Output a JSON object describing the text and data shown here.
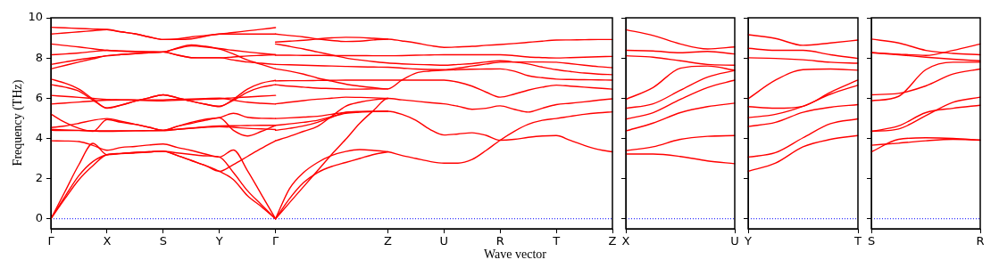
{
  "chart_data": [
    {
      "type": "line",
      "xlabel": "Wave vector",
      "ylabel": "Frequency (THz)",
      "marker": "none",
      "line_style": "solid",
      "categories": [
        "Γ",
        null,
        null,
        null,
        "X",
        null,
        null,
        null,
        "S",
        null,
        null,
        null,
        "Y",
        null,
        null,
        null,
        "Γ",
        null,
        null,
        null,
        null,
        null,
        null,
        null,
        "Z",
        null,
        null,
        null,
        "U",
        null,
        null,
        null,
        "R",
        null,
        null,
        null,
        "T",
        null,
        null,
        null,
        "Z"
      ],
      "ylim": [
        -0.5,
        10
      ],
      "yticks": [
        0,
        2,
        4,
        6,
        8,
        10
      ],
      "ref_lines": [
        {
          "axis": "y",
          "value": 0,
          "color": "#0000ff",
          "line_style": "dotted"
        }
      ],
      "series": [
        {
          "color": "#ff0000",
          "values": [
            9.53,
            9.5,
            9.47,
            9.44,
            9.41,
            9.3,
            9.2,
            9.05,
            8.92,
            8.95,
            9.05,
            9.12,
            9.19,
            9.27,
            9.35,
            9.43,
            9.51,
            null,
            null,
            null,
            null,
            null,
            null,
            null,
            null,
            null,
            null,
            null,
            null,
            null,
            null,
            null,
            null,
            null,
            null,
            null,
            null,
            null,
            null,
            null,
            null
          ]
        },
        {
          "color": "#ff0000",
          "values": [
            9.19,
            9.25,
            9.3,
            9.36,
            9.41,
            9.3,
            9.2,
            9.05,
            8.92,
            8.92,
            8.95,
            9.08,
            9.19,
            9.19,
            9.19,
            9.19,
            9.19,
            null,
            null,
            null,
            null,
            null,
            null,
            null,
            null,
            null,
            null,
            null,
            null,
            null,
            null,
            null,
            null,
            null,
            null,
            null,
            null,
            null,
            null,
            null,
            null
          ]
        },
        {
          "color": "#ff0000",
          "values": [
            8.7,
            8.62,
            8.55,
            8.46,
            8.38,
            8.34,
            8.32,
            8.31,
            8.3,
            8.5,
            8.65,
            8.58,
            8.47,
            8.38,
            8.3,
            8.23,
            8.16,
            null,
            null,
            null,
            null,
            null,
            null,
            null,
            null,
            null,
            null,
            null,
            null,
            null,
            null,
            null,
            null,
            null,
            null,
            null,
            null,
            null,
            null,
            null,
            null
          ]
        },
        {
          "color": "#ff0000",
          "values": [
            8.16,
            8.2,
            8.25,
            8.32,
            8.38,
            8.35,
            8.33,
            8.31,
            8.3,
            8.15,
            8.02,
            8.01,
            8.01,
            8.05,
            8.1,
            8.13,
            8.16,
            null,
            null,
            null,
            null,
            null,
            null,
            null,
            null,
            null,
            null,
            null,
            null,
            null,
            null,
            null,
            null,
            null,
            null,
            null,
            null,
            null,
            null,
            null,
            null
          ]
        },
        {
          "color": "#ff0000",
          "values": [
            7.68,
            7.8,
            7.92,
            8.02,
            8.11,
            8.17,
            8.22,
            8.26,
            8.3,
            8.15,
            8.02,
            8.01,
            8.01,
            7.9,
            7.8,
            7.74,
            7.68,
            null,
            null,
            null,
            null,
            null,
            null,
            null,
            null,
            null,
            null,
            null,
            null,
            null,
            null,
            null,
            null,
            null,
            null,
            null,
            null,
            null,
            null,
            null,
            null
          ]
        },
        {
          "color": "#ff0000",
          "values": [
            7.46,
            7.63,
            7.8,
            7.96,
            8.11,
            8.17,
            8.22,
            8.26,
            8.3,
            8.47,
            8.6,
            8.55,
            8.45,
            8.2,
            7.9,
            7.68,
            7.46,
            null,
            null,
            null,
            null,
            null,
            null,
            null,
            null,
            null,
            null,
            null,
            null,
            null,
            null,
            null,
            null,
            null,
            null,
            null,
            null,
            null,
            null,
            null,
            null
          ]
        },
        {
          "color": "#ff0000",
          "values": [
            6.95,
            6.75,
            6.45,
            5.95,
            5.5,
            5.65,
            5.85,
            6.02,
            6.17,
            6.02,
            5.85,
            5.7,
            5.58,
            5.95,
            6.45,
            6.75,
            6.89,
            null,
            null,
            null,
            null,
            null,
            null,
            null,
            null,
            null,
            null,
            null,
            null,
            null,
            null,
            null,
            null,
            null,
            null,
            null,
            null,
            null,
            null,
            null,
            null
          ]
        },
        {
          "color": "#ff0000",
          "values": [
            6.67,
            6.55,
            6.35,
            5.9,
            5.52,
            5.66,
            5.85,
            6.02,
            6.17,
            6.02,
            5.85,
            5.7,
            5.6,
            5.9,
            6.3,
            6.55,
            6.67,
            null,
            null,
            null,
            null,
            null,
            null,
            null,
            null,
            null,
            null,
            null,
            null,
            null,
            null,
            null,
            null,
            null,
            null,
            null,
            null,
            null,
            null,
            null,
            null
          ]
        },
        {
          "color": "#ff0000",
          "values": [
            6.14,
            6.09,
            6.04,
            5.99,
            5.94,
            5.92,
            5.9,
            5.88,
            5.87,
            5.9,
            5.92,
            5.95,
            5.97,
            6.02,
            6.06,
            6.1,
            6.14,
            null,
            null,
            null,
            null,
            null,
            null,
            null,
            null,
            null,
            null,
            null,
            null,
            null,
            null,
            null,
            null,
            null,
            null,
            null,
            null,
            null,
            null,
            null,
            null
          ]
        },
        {
          "color": "#ff0000",
          "values": [
            5.71,
            5.76,
            5.81,
            5.86,
            5.9,
            5.91,
            5.91,
            5.92,
            5.92,
            5.94,
            5.96,
            5.98,
            6.0,
            5.9,
            5.8,
            5.75,
            5.71,
            null,
            null,
            null,
            null,
            null,
            null,
            null,
            null,
            null,
            null,
            null,
            null,
            null,
            null,
            null,
            null,
            null,
            null,
            null,
            null,
            null,
            null,
            null,
            null
          ]
        },
        {
          "color": "#ff0000",
          "values": [
            5.21,
            4.8,
            4.5,
            4.35,
            4.94,
            4.8,
            4.7,
            4.55,
            4.4,
            4.6,
            4.75,
            4.9,
            5.03,
            4.4,
            4.12,
            4.35,
            4.65,
            null,
            null,
            null,
            null,
            null,
            null,
            null,
            null,
            null,
            null,
            null,
            null,
            null,
            null,
            null,
            null,
            null,
            null,
            null,
            null,
            null,
            null,
            null,
            null
          ]
        },
        {
          "color": "#ff0000",
          "values": [
            4.54,
            4.62,
            4.75,
            4.9,
            4.99,
            4.85,
            4.7,
            4.55,
            4.4,
            4.6,
            4.8,
            4.95,
            5.03,
            5.25,
            5.05,
            5.0,
            4.99,
            null,
            null,
            null,
            null,
            null,
            null,
            null,
            null,
            null,
            null,
            null,
            null,
            null,
            null,
            null,
            null,
            null,
            null,
            null,
            null,
            null,
            null,
            null,
            null
          ]
        },
        {
          "color": "#ff0000",
          "values": [
            4.4,
            4.39,
            4.39,
            4.38,
            4.38,
            4.38,
            4.38,
            4.38,
            4.38,
            4.45,
            4.52,
            4.58,
            4.62,
            4.63,
            4.64,
            4.65,
            4.65,
            null,
            null,
            null,
            null,
            null,
            null,
            null,
            null,
            null,
            null,
            null,
            null,
            null,
            null,
            null,
            null,
            null,
            null,
            null,
            null,
            null,
            null,
            null,
            null
          ]
        },
        {
          "color": "#ff0000",
          "values": [
            4.45,
            4.42,
            4.4,
            4.37,
            4.35,
            4.36,
            4.38,
            4.39,
            4.4,
            4.45,
            4.5,
            4.55,
            4.58,
            4.55,
            4.5,
            4.47,
            4.44,
            null,
            null,
            null,
            null,
            null,
            null,
            null,
            null,
            null,
            null,
            null,
            null,
            null,
            null,
            null,
            null,
            null,
            null,
            null,
            null,
            null,
            null,
            null,
            null
          ]
        },
        {
          "color": "#ff0000",
          "values": [
            3.88,
            3.87,
            3.84,
            3.65,
            3.41,
            3.55,
            3.6,
            3.67,
            3.72,
            3.55,
            3.4,
            3.22,
            3.07,
            3.42,
            2.4,
            1.2,
            0,
            null,
            null,
            null,
            null,
            null,
            null,
            null,
            null,
            null,
            null,
            null,
            null,
            null,
            null,
            null,
            null,
            null,
            null,
            null,
            null,
            null,
            null,
            null,
            null
          ]
        },
        {
          "color": "#ff0000",
          "values": [
            0,
            1.35,
            2.7,
            3.75,
            3.19,
            3.25,
            3.3,
            3.33,
            3.36,
            3.15,
            2.9,
            2.65,
            2.36,
            2.7,
            3.1,
            3.5,
            3.88,
            null,
            null,
            null,
            null,
            null,
            null,
            null,
            null,
            null,
            null,
            null,
            null,
            null,
            null,
            null,
            null,
            null,
            null,
            null,
            null,
            null,
            null,
            null,
            null
          ]
        },
        {
          "color": "#ff0000",
          "values": [
            0,
            1.0,
            1.95,
            2.65,
            3.19,
            3.24,
            3.28,
            3.32,
            3.36,
            3.15,
            2.9,
            2.65,
            2.36,
            1.95,
            1.15,
            0.6,
            0,
            null,
            null,
            null,
            null,
            null,
            null,
            null,
            null,
            null,
            null,
            null,
            null,
            null,
            null,
            null,
            null,
            null,
            null,
            null,
            null,
            null,
            null,
            null,
            null
          ]
        },
        {
          "color": "#ff0000",
          "values": [
            0,
            1.1,
            2.15,
            2.85,
            3.19,
            3.25,
            3.3,
            3.33,
            null,
            null,
            null,
            null,
            null,
            null,
            null,
            null,
            null,
            null,
            null,
            null,
            null,
            null,
            null,
            null,
            null,
            null,
            null,
            null,
            null,
            null,
            null,
            null,
            null,
            null,
            null,
            null,
            null,
            null,
            null,
            null,
            null
          ]
        },
        {
          "color": "#ff0000",
          "values": [
            null,
            null,
            null,
            null,
            null,
            null,
            null,
            3.33,
            3.36,
            3.28,
            3.2,
            3.13,
            3.07,
            2.3,
            1.4,
            0.7,
            0,
            null,
            null,
            null,
            null,
            null,
            null,
            null,
            null,
            null,
            null,
            null,
            null,
            null,
            null,
            null,
            null,
            null,
            null,
            null,
            null,
            null,
            null,
            null,
            null
          ]
        },
        {
          "color": "#ff0000",
          "values": [
            null,
            null,
            null,
            null,
            null,
            null,
            null,
            null,
            null,
            null,
            null,
            null,
            null,
            null,
            null,
            null,
            9.19,
            9.12,
            9.05,
            8.95,
            8.87,
            8.82,
            8.84,
            8.9,
            8.94,
            8.85,
            8.75,
            8.62,
            8.53,
            8.55,
            8.58,
            8.63,
            8.67,
            8.72,
            8.78,
            8.84,
            8.89,
            8.9,
            8.91,
            8.92,
            8.92
          ]
        },
        {
          "color": "#ff0000",
          "values": [
            null,
            null,
            null,
            null,
            null,
            null,
            null,
            null,
            null,
            null,
            null,
            null,
            null,
            null,
            null,
            null,
            8.79,
            8.84,
            8.88,
            8.95,
            9.0,
            9.03,
            9.02,
            8.98,
            8.94,
            null,
            null,
            null,
            null,
            null,
            null,
            null,
            null,
            null,
            null,
            null,
            null,
            null,
            null,
            null,
            null
          ]
        },
        {
          "color": "#ff0000",
          "values": [
            null,
            null,
            null,
            null,
            null,
            null,
            null,
            null,
            null,
            null,
            null,
            null,
            null,
            null,
            null,
            null,
            8.7,
            8.58,
            8.45,
            8.3,
            8.15,
            8.0,
            7.9,
            7.82,
            7.75,
            7.71,
            7.68,
            7.66,
            7.64,
            7.68,
            7.72,
            7.8,
            7.86,
            7.8,
            7.7,
            7.55,
            7.42,
            7.33,
            7.25,
            7.2,
            7.17
          ]
        },
        {
          "color": "#ff0000",
          "values": [
            null,
            null,
            null,
            null,
            null,
            null,
            null,
            null,
            null,
            null,
            null,
            null,
            null,
            null,
            null,
            null,
            8.14,
            8.14,
            8.13,
            8.13,
            8.12,
            8.12,
            8.12,
            8.11,
            8.11,
            8.12,
            8.14,
            8.15,
            8.16,
            8.16,
            8.16,
            8.16,
            8.16,
            8.12,
            8.05,
            8.02,
            8.0,
            8.02,
            8.04,
            8.06,
            8.08
          ]
        },
        {
          "color": "#ff0000",
          "values": [
            null,
            null,
            null,
            null,
            null,
            null,
            null,
            null,
            null,
            null,
            null,
            null,
            null,
            null,
            null,
            null,
            7.68,
            7.66,
            7.64,
            7.62,
            7.6,
            7.58,
            7.56,
            7.55,
            7.54,
            7.5,
            7.45,
            7.43,
            7.42,
            7.5,
            7.6,
            7.7,
            7.79,
            7.8,
            7.8,
            7.8,
            7.79,
            7.72,
            7.64,
            7.57,
            7.52
          ]
        },
        {
          "color": "#ff0000",
          "values": [
            null,
            null,
            null,
            null,
            null,
            null,
            null,
            null,
            null,
            null,
            null,
            null,
            null,
            null,
            null,
            null,
            7.46,
            7.35,
            7.2,
            7.0,
            6.85,
            6.7,
            6.6,
            6.52,
            6.46,
            6.9,
            7.25,
            7.35,
            7.39,
            7.42,
            7.44,
            7.45,
            7.46,
            7.35,
            7.12,
            7.02,
            6.95,
            6.93,
            6.92,
            6.91,
            6.9
          ]
        },
        {
          "color": "#ff0000",
          "values": [
            null,
            null,
            null,
            null,
            null,
            null,
            null,
            null,
            null,
            null,
            null,
            null,
            null,
            null,
            null,
            null,
            0,
            0.8,
            1.6,
            2.4,
            3.2,
            3.95,
            4.75,
            5.4,
            5.99,
            5.92,
            5.85,
            5.78,
            5.72,
            5.6,
            5.45,
            5.5,
            5.62,
            5.45,
            5.31,
            5.5,
            5.68,
            5.75,
            5.82,
            5.9,
            5.97
          ]
        },
        {
          "color": "#ff0000",
          "values": [
            null,
            null,
            null,
            null,
            null,
            null,
            null,
            null,
            null,
            null,
            null,
            null,
            null,
            null,
            null,
            null,
            6.86,
            6.87,
            6.87,
            6.88,
            6.89,
            6.9,
            6.9,
            6.9,
            6.9,
            6.9,
            6.9,
            6.9,
            6.9,
            6.8,
            6.6,
            6.3,
            6.05,
            6.2,
            6.4,
            6.55,
            6.65,
            6.6,
            6.55,
            6.5,
            6.45
          ]
        },
        {
          "color": "#ff0000",
          "values": [
            null,
            null,
            null,
            null,
            null,
            null,
            null,
            null,
            null,
            null,
            null,
            null,
            null,
            null,
            null,
            null,
            6.67,
            6.6,
            6.55,
            6.5,
            6.48,
            6.45,
            6.45,
            6.46,
            6.46,
            null,
            null,
            null,
            null,
            null,
            null,
            null,
            null,
            null,
            null,
            null,
            null,
            null,
            null,
            null,
            null
          ]
        },
        {
          "color": "#ff0000",
          "values": [
            null,
            null,
            null,
            null,
            null,
            null,
            null,
            null,
            null,
            null,
            null,
            null,
            null,
            null,
            null,
            null,
            5.72,
            5.8,
            5.88,
            5.95,
            6.0,
            6.05,
            6.04,
            6.02,
            5.99,
            null,
            null,
            null,
            null,
            null,
            null,
            null,
            null,
            null,
            null,
            null,
            null,
            null,
            null,
            null,
            null
          ]
        },
        {
          "color": "#ff0000",
          "values": [
            null,
            null,
            null,
            null,
            null,
            null,
            null,
            null,
            null,
            null,
            null,
            null,
            null,
            null,
            null,
            null,
            4.99,
            5.02,
            5.06,
            5.1,
            5.2,
            5.3,
            5.33,
            5.34,
            5.35,
            5.2,
            4.9,
            4.45,
            4.17,
            4.22,
            4.28,
            4.15,
            3.91,
            3.95,
            4.05,
            4.12,
            4.14,
            3.9,
            3.65,
            3.45,
            3.33
          ]
        },
        {
          "color": "#ff0000",
          "values": [
            null,
            null,
            null,
            null,
            null,
            null,
            null,
            null,
            null,
            null,
            null,
            null,
            null,
            null,
            null,
            null,
            4.65,
            4.72,
            4.8,
            4.9,
            5.08,
            5.25,
            5.3,
            5.33,
            5.35,
            null,
            null,
            null,
            null,
            null,
            null,
            null,
            null,
            null,
            null,
            null,
            null,
            null,
            null,
            null,
            null
          ]
        },
        {
          "color": "#ff0000",
          "values": [
            null,
            null,
            null,
            null,
            null,
            null,
            null,
            null,
            null,
            null,
            null,
            null,
            null,
            null,
            null,
            null,
            4.4,
            4.5,
            4.62,
            4.8,
            5.05,
            5.3,
            5.33,
            5.34,
            5.35,
            null,
            null,
            null,
            null,
            null,
            null,
            null,
            null,
            null,
            null,
            null,
            null,
            null,
            null,
            null,
            null
          ]
        },
        {
          "color": "#ff0000",
          "values": [
            null,
            null,
            null,
            null,
            null,
            null,
            null,
            null,
            null,
            null,
            null,
            null,
            null,
            null,
            null,
            null,
            3.88,
            4.1,
            4.35,
            4.6,
            5.1,
            5.6,
            5.8,
            5.92,
            5.99,
            null,
            null,
            null,
            null,
            null,
            null,
            null,
            null,
            null,
            null,
            null,
            null,
            null,
            null,
            null,
            null
          ]
        },
        {
          "color": "#ff0000",
          "values": [
            null,
            null,
            null,
            null,
            null,
            null,
            null,
            null,
            null,
            null,
            null,
            null,
            null,
            null,
            null,
            null,
            0,
            1.5,
            2.3,
            2.8,
            3.15,
            3.35,
            3.44,
            3.4,
            3.33,
            3.15,
            3.0,
            2.85,
            2.77,
            2.77,
            2.95,
            3.4,
            3.91,
            4.35,
            4.7,
            4.9,
            4.99,
            5.1,
            5.2,
            5.27,
            5.32
          ]
        },
        {
          "color": "#ff0000",
          "values": [
            null,
            null,
            null,
            null,
            null,
            null,
            null,
            null,
            null,
            null,
            null,
            null,
            null,
            null,
            null,
            null,
            0,
            1.0,
            1.8,
            2.3,
            2.6,
            2.8,
            3.0,
            3.2,
            3.33,
            null,
            null,
            null,
            null,
            null,
            null,
            null,
            null,
            null,
            null,
            null,
            null,
            null,
            null,
            null,
            null
          ]
        }
      ]
    },
    {
      "type": "line",
      "marker": "none",
      "line_style": "solid",
      "tick_labels": "x",
      "categories": [
        "X",
        null,
        null,
        null,
        "U"
      ],
      "ylim": [
        -0.5,
        10
      ],
      "yticks": [
        0,
        2,
        4,
        6,
        8,
        10
      ],
      "ref_lines": [
        {
          "axis": "y",
          "value": 0,
          "color": "#0000ff",
          "line_style": "dotted"
        }
      ],
      "series": [
        {
          "color": "#ff0000",
          "values": [
            9.41,
            9.12,
            8.7,
            8.45,
            8.55
          ]
        },
        {
          "color": "#ff0000",
          "values": [
            8.38,
            8.35,
            8.26,
            8.33,
            8.2
          ]
        },
        {
          "color": "#ff0000",
          "values": [
            8.11,
            8.04,
            7.86,
            7.68,
            7.64
          ]
        },
        {
          "color": "#ff0000",
          "values": [
            5.94,
            6.53,
            7.49,
            7.6,
            7.39
          ]
        },
        {
          "color": "#ff0000",
          "values": [
            5.5,
            5.72,
            6.39,
            7.05,
            7.38
          ]
        },
        {
          "color": "#ff0000",
          "values": [
            4.96,
            5.28,
            5.94,
            6.53,
            6.9
          ]
        },
        {
          "color": "#ff0000",
          "values": [
            4.37,
            4.76,
            5.28,
            5.58,
            5.75
          ]
        },
        {
          "color": "#ff0000",
          "values": [
            3.39,
            3.58,
            3.95,
            4.1,
            4.14
          ]
        },
        {
          "color": "#ff0000",
          "values": [
            3.22,
            3.22,
            3.1,
            2.88,
            2.74
          ]
        }
      ]
    },
    {
      "type": "line",
      "marker": "none",
      "line_style": "solid",
      "tick_labels": "x",
      "categories": [
        "Y",
        null,
        null,
        null,
        "T"
      ],
      "ylim": [
        -0.5,
        10
      ],
      "yticks": [
        0,
        2,
        4,
        6,
        8,
        10
      ],
      "ref_lines": [
        {
          "axis": "y",
          "value": 0,
          "color": "#0000ff",
          "line_style": "dotted"
        }
      ],
      "series": [
        {
          "color": "#ff0000",
          "values": [
            9.16,
            8.97,
            8.63,
            8.75,
            8.89
          ]
        },
        {
          "color": "#ff0000",
          "values": [
            8.48,
            8.38,
            8.38,
            8.16,
            7.98
          ]
        },
        {
          "color": "#ff0000",
          "values": [
            8.01,
            7.98,
            7.91,
            7.79,
            7.74
          ]
        },
        {
          "color": "#ff0000",
          "values": [
            5.97,
            6.9,
            7.42,
            7.45,
            7.39
          ]
        },
        {
          "color": "#ff0000",
          "values": [
            5.58,
            5.5,
            5.6,
            6.3,
            6.9
          ]
        },
        {
          "color": "#ff0000",
          "values": [
            5.03,
            5.2,
            5.6,
            6.2,
            6.65
          ]
        },
        {
          "color": "#ff0000",
          "values": [
            4.59,
            4.8,
            5.3,
            5.55,
            5.68
          ]
        },
        {
          "color": "#ff0000",
          "values": [
            3.07,
            3.29,
            4.03,
            4.73,
            4.97
          ]
        },
        {
          "color": "#ff0000",
          "values": [
            2.36,
            2.77,
            3.58,
            3.95,
            4.14
          ]
        }
      ]
    },
    {
      "type": "line",
      "marker": "none",
      "line_style": "solid",
      "tick_labels": "x",
      "categories": [
        "S",
        null,
        null,
        null,
        "R"
      ],
      "ylim": [
        -0.5,
        10
      ],
      "yticks": [
        0,
        2,
        4,
        6,
        8,
        10
      ],
      "ref_lines": [
        {
          "axis": "y",
          "value": 0,
          "color": "#0000ff",
          "line_style": "dotted"
        }
      ],
      "series": [
        {
          "color": "#ff0000",
          "values": [
            8.94,
            8.75,
            8.38,
            8.23,
            8.16
          ]
        },
        {
          "color": "#ff0000",
          "values": [
            8.27,
            8.19,
            8.13,
            8.38,
            8.7
          ]
        },
        {
          "color": "#ff0000",
          "values": [
            8.26,
            8.16,
            8.04,
            7.94,
            7.86
          ]
        },
        {
          "color": "#ff0000",
          "values": [
            5.87,
            6.09,
            7.42,
            7.79,
            7.79
          ]
        },
        {
          "color": "#ff0000",
          "values": [
            6.17,
            6.24,
            6.61,
            7.2,
            7.45
          ]
        },
        {
          "color": "#ff0000",
          "values": [
            4.35,
            4.47,
            5.13,
            5.8,
            6.05
          ]
        },
        {
          "color": "#ff0000",
          "values": [
            4.35,
            4.62,
            5.28,
            5.5,
            5.65
          ]
        },
        {
          "color": "#ff0000",
          "values": [
            3.66,
            3.76,
            3.88,
            3.95,
            3.92
          ]
        },
        {
          "color": "#ff0000",
          "values": [
            3.33,
            3.95,
            4.03,
            4.0,
            3.91
          ]
        }
      ]
    }
  ]
}
